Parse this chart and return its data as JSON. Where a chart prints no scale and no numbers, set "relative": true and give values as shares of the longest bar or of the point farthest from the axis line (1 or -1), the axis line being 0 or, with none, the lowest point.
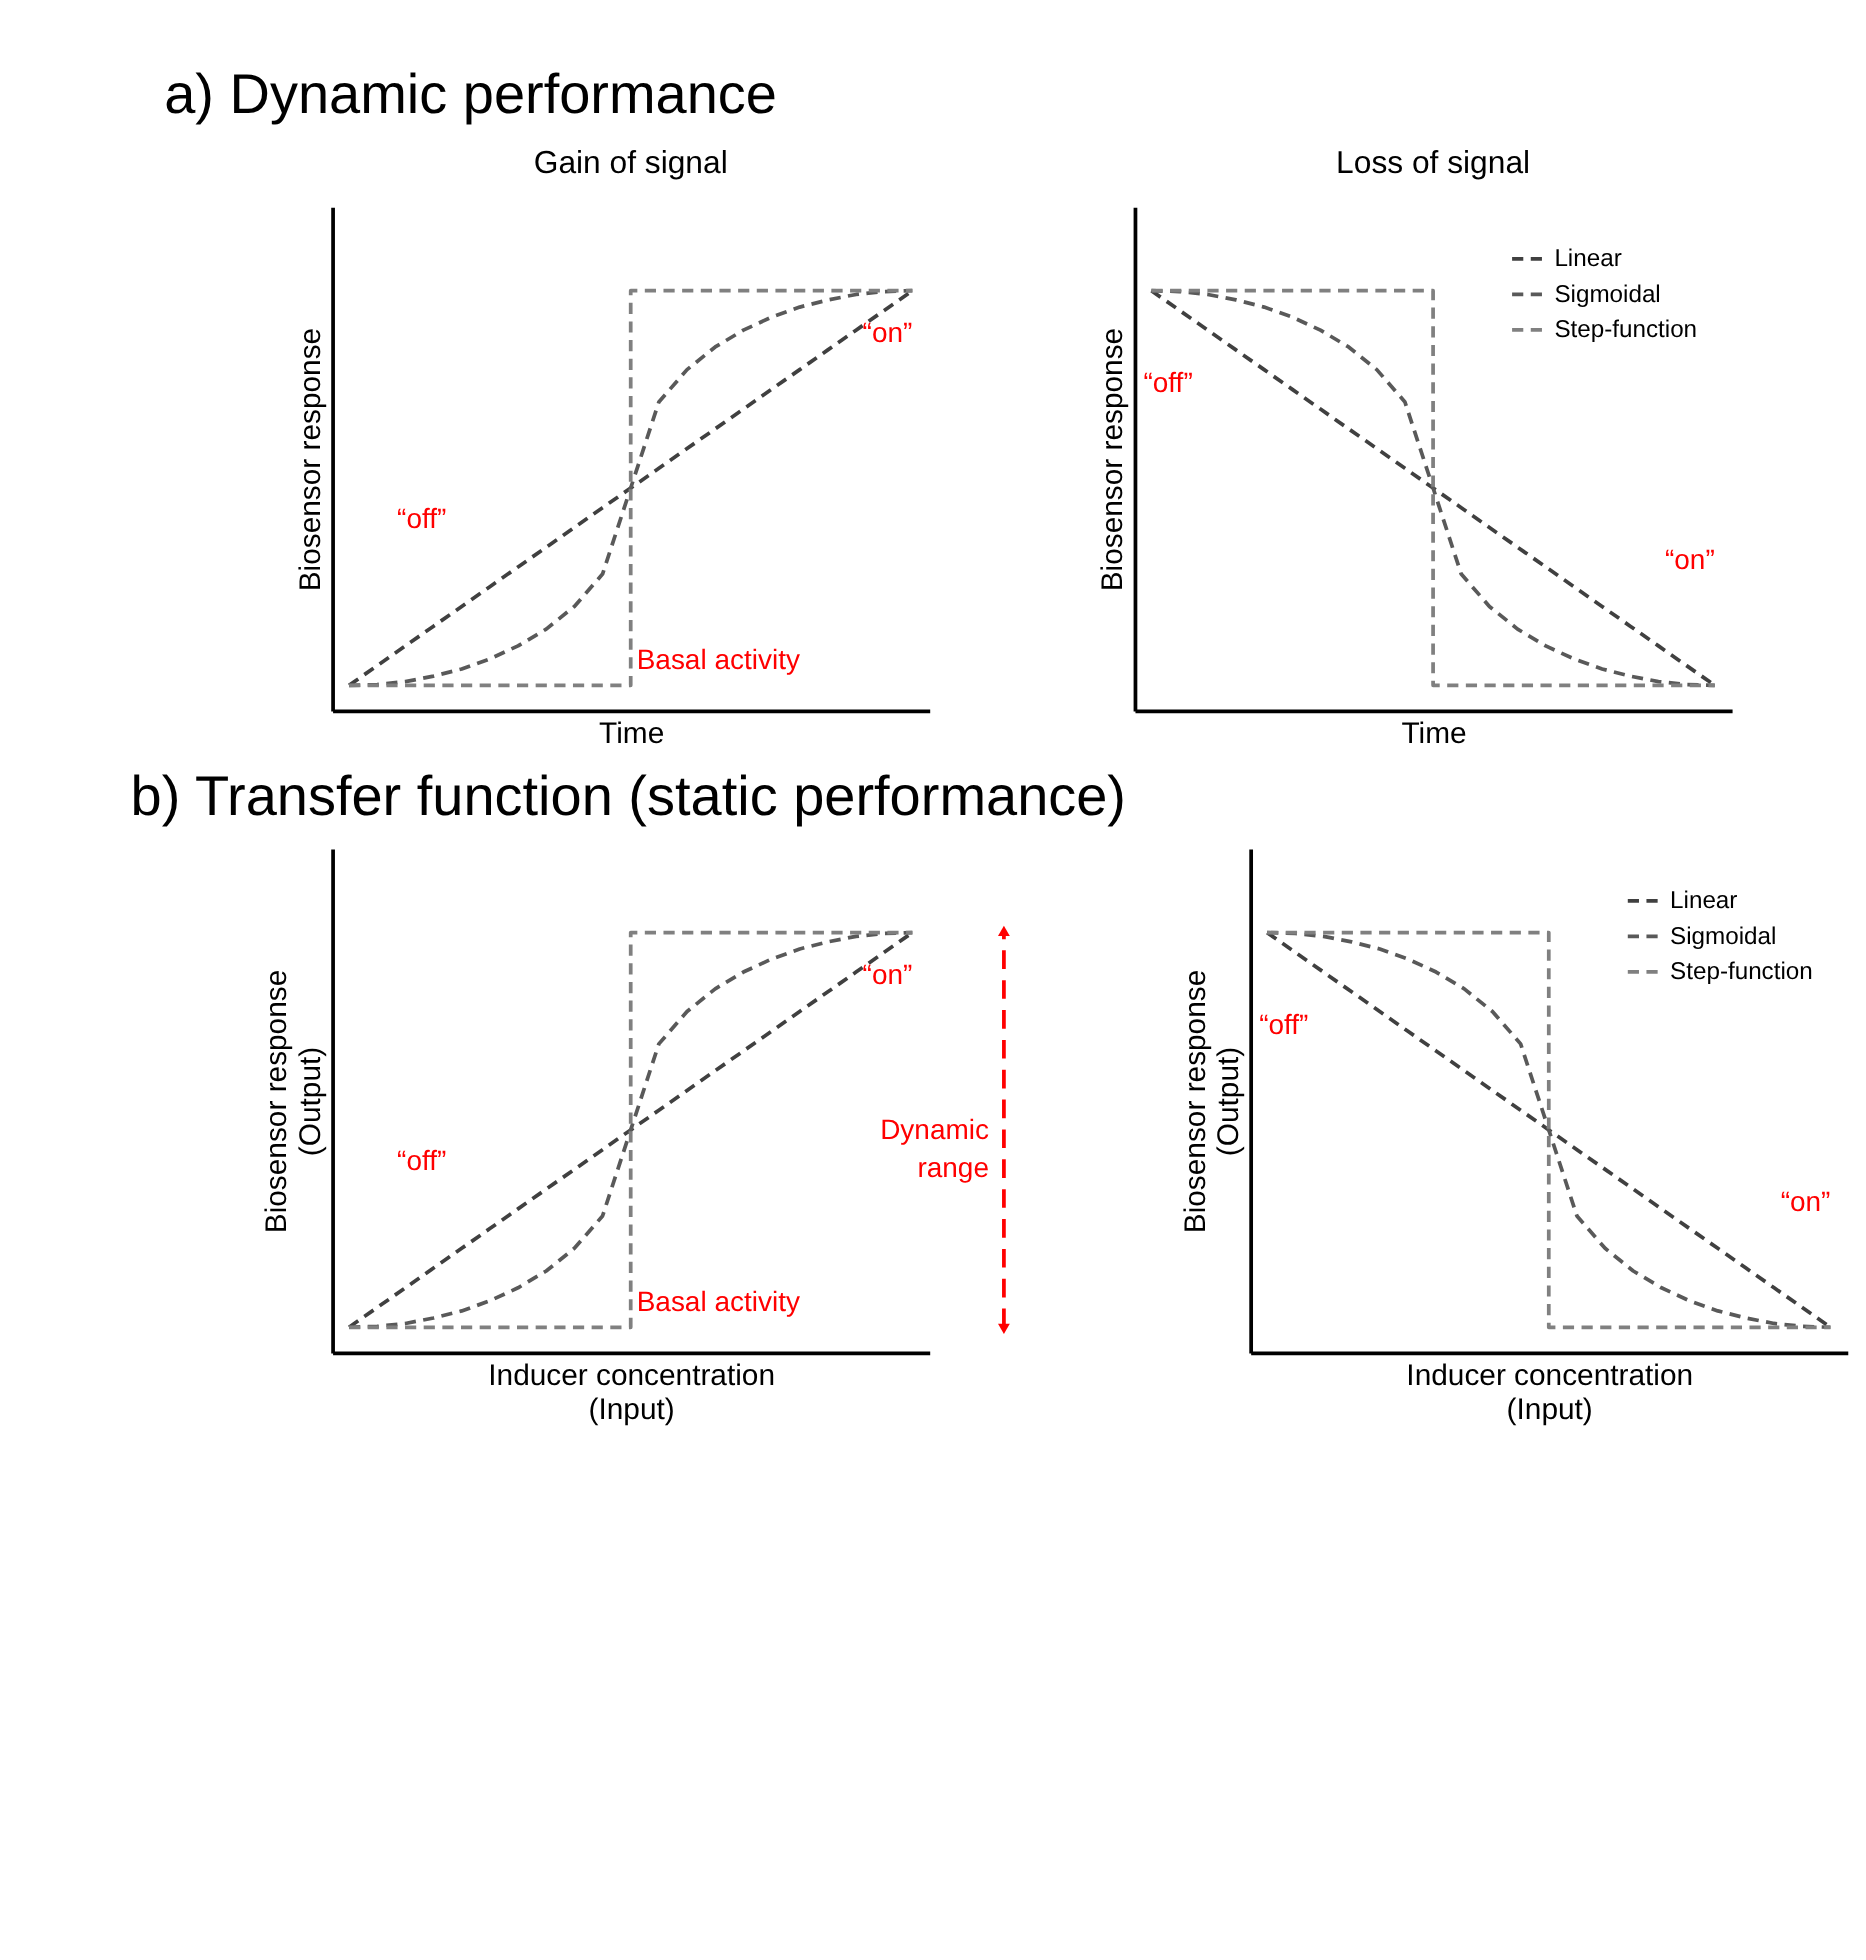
{
  "chart_data": [
    {
      "type": "line",
      "relative": true,
      "title": "Gain of signal",
      "subtitle": "a) Dynamic performance",
      "xlabel": "Time",
      "ylabel": "Biosensor response",
      "legend": false,
      "grid": false,
      "tick_labels": false,
      "marker": "none",
      "line_style": "dashed",
      "categories": [
        null,
        null,
        null,
        null,
        null,
        null,
        null,
        null,
        null,
        null,
        null,
        null,
        null,
        null,
        null,
        null,
        null,
        null,
        null,
        null,
        null
      ],
      "series": [
        {
          "color": "#404040",
          "values": [
            0.06,
            0.107,
            0.154,
            0.201,
            0.248,
            0.295,
            0.342,
            0.389,
            0.436,
            0.483,
            0.53,
            0.577,
            0.624,
            0.671,
            0.718,
            0.765,
            0.812,
            0.859,
            0.906,
            0.953,
            1
          ]
        },
        {
          "color": "#595959",
          "values": [
            0.06,
            0.062,
            0.069,
            0.082,
            0.099,
            0.123,
            0.154,
            0.194,
            0.248,
            0.325,
            0.53,
            0.735,
            0.812,
            0.866,
            0.906,
            0.937,
            0.961,
            0.978,
            0.991,
            0.998,
            1
          ]
        },
        {
          "type": "step",
          "color": "#808080",
          "values": [
            0.06,
            0.06,
            0.06,
            0.06,
            0.06,
            0.06,
            0.06,
            0.06,
            0.06,
            0.06,
            1,
            1,
            1,
            1,
            1,
            1,
            1,
            1,
            1,
            1,
            1
          ]
        }
      ],
      "annotations": [
        "“off”",
        "“on”",
        "Basal activity"
      ]
    },
    {
      "type": "line",
      "relative": true,
      "title": "Loss of signal",
      "xlabel": "Time",
      "ylabel": "Biosensor response",
      "legend": "top right",
      "grid": false,
      "tick_labels": false,
      "marker": "none",
      "line_style": "dashed",
      "categories": [
        null,
        null,
        null,
        null,
        null,
        null,
        null,
        null,
        null,
        null,
        null,
        null,
        null,
        null,
        null,
        null,
        null,
        null,
        null,
        null,
        null
      ],
      "series": [
        {
          "name": "Linear",
          "color": "#404040",
          "values": [
            1,
            0.953,
            0.906,
            0.859,
            0.812,
            0.765,
            0.718,
            0.671,
            0.624,
            0.577,
            0.53,
            0.483,
            0.436,
            0.389,
            0.342,
            0.295,
            0.248,
            0.201,
            0.154,
            0.107,
            0.06
          ]
        },
        {
          "name": "Sigmoidal",
          "color": "#595959",
          "values": [
            1,
            0.998,
            0.991,
            0.978,
            0.961,
            0.937,
            0.906,
            0.866,
            0.812,
            0.735,
            0.53,
            0.325,
            0.248,
            0.194,
            0.154,
            0.123,
            0.099,
            0.082,
            0.069,
            0.062,
            0.06
          ]
        },
        {
          "name": "Step-function",
          "type": "step",
          "color": "#808080",
          "values": [
            1,
            1,
            1,
            1,
            1,
            1,
            1,
            1,
            1,
            1,
            0.06,
            0.06,
            0.06,
            0.06,
            0.06,
            0.06,
            0.06,
            0.06,
            0.06,
            0.06,
            0.06
          ]
        }
      ],
      "annotations": [
        "“off”",
        "“on”"
      ]
    },
    {
      "type": "line",
      "relative": true,
      "subtitle": "b) Transfer function (static performance)",
      "xlabel": "Inducer concentration\n(Input)",
      "ylabel": "Biosensor response\n(Output)",
      "legend": false,
      "grid": false,
      "tick_labels": false,
      "marker": "none",
      "line_style": "dashed",
      "categories": [
        null,
        null,
        null,
        null,
        null,
        null,
        null,
        null,
        null,
        null,
        null,
        null,
        null,
        null,
        null,
        null,
        null,
        null,
        null,
        null,
        null
      ],
      "series": [
        {
          "color": "#404040",
          "values": [
            0.06,
            0.107,
            0.154,
            0.201,
            0.248,
            0.295,
            0.342,
            0.389,
            0.436,
            0.483,
            0.53,
            0.577,
            0.624,
            0.671,
            0.718,
            0.765,
            0.812,
            0.859,
            0.906,
            0.953,
            1
          ]
        },
        {
          "color": "#595959",
          "values": [
            0.06,
            0.062,
            0.069,
            0.082,
            0.099,
            0.123,
            0.154,
            0.194,
            0.248,
            0.325,
            0.53,
            0.735,
            0.812,
            0.866,
            0.906,
            0.937,
            0.961,
            0.978,
            0.991,
            0.998,
            1
          ]
        },
        {
          "type": "step",
          "color": "#808080",
          "values": [
            0.06,
            0.06,
            0.06,
            0.06,
            0.06,
            0.06,
            0.06,
            0.06,
            0.06,
            0.06,
            1,
            1,
            1,
            1,
            1,
            1,
            1,
            1,
            1,
            1,
            1
          ]
        }
      ],
      "annotations": [
        "“off”",
        "“on”",
        "Basal activity",
        "Dynamic range"
      ]
    },
    {
      "type": "line",
      "relative": true,
      "xlabel": "Inducer concentration\n(Input)",
      "ylabel": "Biosensor response\n(Output)",
      "legend": "top right",
      "grid": false,
      "tick_labels": false,
      "marker": "none",
      "line_style": "dashed",
      "categories": [
        null,
        null,
        null,
        null,
        null,
        null,
        null,
        null,
        null,
        null,
        null,
        null,
        null,
        null,
        null,
        null,
        null,
        null,
        null,
        null,
        null
      ],
      "series": [
        {
          "name": "Linear",
          "color": "#404040",
          "values": [
            1,
            0.953,
            0.906,
            0.859,
            0.812,
            0.765,
            0.718,
            0.671,
            0.624,
            0.577,
            0.53,
            0.483,
            0.436,
            0.389,
            0.342,
            0.295,
            0.248,
            0.201,
            0.154,
            0.107,
            0.06
          ]
        },
        {
          "name": "Sigmoidal",
          "color": "#595959",
          "values": [
            1,
            0.998,
            0.991,
            0.978,
            0.961,
            0.937,
            0.906,
            0.866,
            0.812,
            0.735,
            0.53,
            0.325,
            0.248,
            0.194,
            0.154,
            0.123,
            0.099,
            0.082,
            0.069,
            0.062,
            0.06
          ]
        },
        {
          "name": "Step-function",
          "type": "step",
          "color": "#808080",
          "values": [
            1,
            1,
            1,
            1,
            1,
            1,
            1,
            1,
            1,
            1,
            0.06,
            0.06,
            0.06,
            0.06,
            0.06,
            0.06,
            0.06,
            0.06,
            0.06,
            0.06,
            0.06
          ]
        }
      ],
      "annotations": [
        "“off”",
        "“on”"
      ]
    }
  ]
}
